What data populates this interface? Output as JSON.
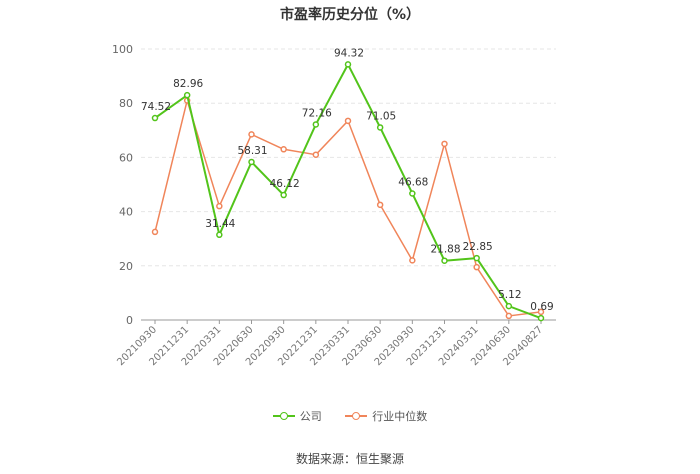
{
  "chart_data": {
    "type": "line",
    "title": "市盈率历史分位（%）",
    "xlabel": "",
    "ylabel": "",
    "ylim": [
      0,
      100
    ],
    "yticks": [
      0,
      20,
      40,
      60,
      80,
      100
    ],
    "grid": true,
    "legend_position": "bottom",
    "categories": [
      "20210930",
      "20211231",
      "20220331",
      "20220630",
      "20220930",
      "20221231",
      "20230331",
      "20230630",
      "20230930",
      "20231231",
      "20240331",
      "20240630",
      "20240827"
    ],
    "series": [
      {
        "name": "公司",
        "color": "#52c41a",
        "show_labels": true,
        "values": [
          74.52,
          82.96,
          31.44,
          58.31,
          46.12,
          72.16,
          94.32,
          71.05,
          46.68,
          21.88,
          22.85,
          5.12,
          0.69
        ]
      },
      {
        "name": "行业中位数",
        "color": "#f0855a",
        "show_labels": false,
        "values": [
          32.5,
          81.0,
          42.0,
          68.5,
          63.0,
          61.0,
          73.5,
          42.5,
          22.0,
          65.0,
          19.5,
          1.5,
          3.0
        ]
      }
    ]
  },
  "source": "数据来源：恒生聚源"
}
